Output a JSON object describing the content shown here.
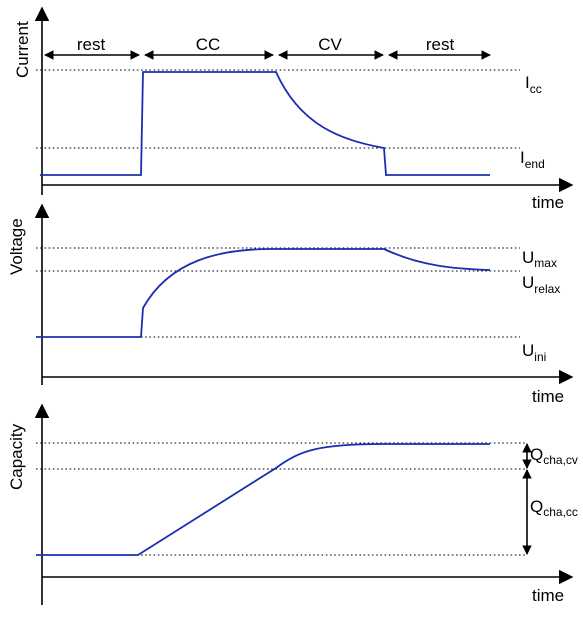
{
  "panels": {
    "current": {
      "ylabel": "Current",
      "xlabel": "time",
      "phases": [
        "rest",
        "CC",
        "CV",
        "rest"
      ],
      "levels": [
        {
          "main": "I",
          "sub": "cc"
        },
        {
          "main": "I",
          "sub": "end"
        }
      ]
    },
    "voltage": {
      "ylabel": "Voltage",
      "xlabel": "time",
      "levels": [
        {
          "main": "U",
          "sub": "max"
        },
        {
          "main": "U",
          "sub": "relax"
        },
        {
          "main": "U",
          "sub": "ini"
        }
      ]
    },
    "capacity": {
      "ylabel": "Capacity",
      "xlabel": "time",
      "levels": [
        {
          "main": "Q",
          "sub": "cha,cv"
        },
        {
          "main": "Q",
          "sub": "cha,cc"
        }
      ]
    }
  },
  "colors": {
    "curve": "#1a2fb0",
    "axis": "#000000"
  }
}
